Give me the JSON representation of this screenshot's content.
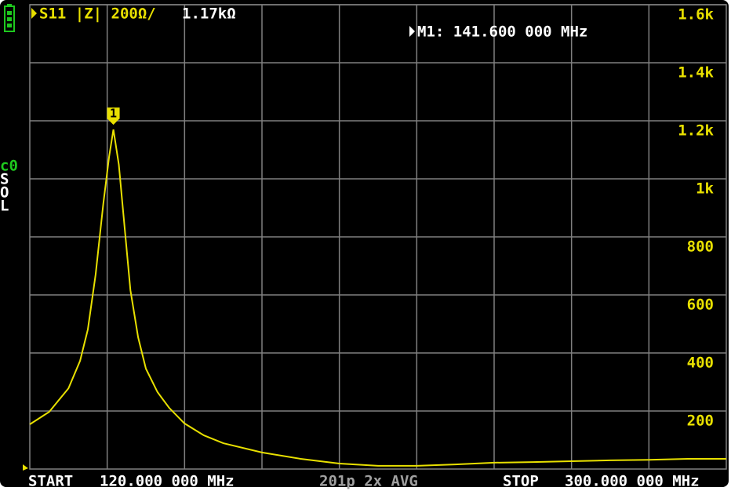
{
  "chart_data": {
    "type": "line",
    "trace_label": "S11 |Z| 200Ω/",
    "trace_value": "1.17kΩ",
    "marker_readout": "M1: 141.600 000 MHz",
    "marker": {
      "label": "1",
      "x": 141.6
    },
    "start_label": "START",
    "start_value": "120.000 000 MHz",
    "points_label": "201p 2x AVG",
    "stop_label": "STOP",
    "stop_value": "300.000 000 MHz",
    "cal_status": [
      "c0",
      "S",
      "O",
      "L"
    ],
    "xlim": [
      120,
      300
    ],
    "ylim": [
      0,
      1600
    ],
    "yticks": [
      200,
      400,
      600,
      800,
      {
        "value": 1000,
        "label": "1k"
      },
      {
        "value": 1200,
        "label": "1.2k"
      },
      {
        "value": 1400,
        "label": "1.4k"
      },
      {
        "value": 1600,
        "label": "1.6k"
      }
    ],
    "grid": true,
    "series": [
      {
        "name": "S11 |Z|",
        "color": "#e8e000",
        "x": [
          120,
          125,
          130,
          133,
          135,
          137,
          139,
          140.5,
          141.6,
          143,
          144.5,
          146,
          148,
          150,
          153,
          156,
          160,
          165,
          170,
          180,
          190,
          200,
          210,
          220,
          230,
          240,
          250,
          260,
          270,
          280,
          290,
          300
        ],
        "values": [
          154,
          197,
          278,
          373,
          481,
          670,
          914,
          1076,
          1170,
          1049,
          832,
          616,
          454,
          346,
          265,
          211,
          157,
          116,
          89,
          57,
          35,
          19,
          11,
          11,
          16,
          22,
          24,
          27,
          30,
          32,
          35,
          35
        ]
      }
    ]
  }
}
